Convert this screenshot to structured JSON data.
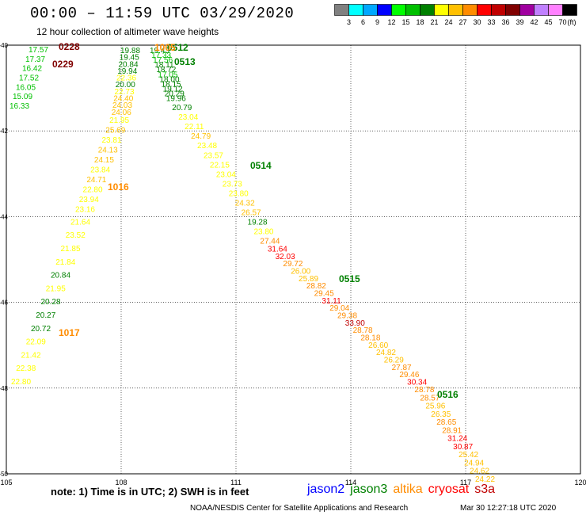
{
  "header": {
    "title": "00:00 – 11:59 UTC 03/29/2020",
    "subtitle": "12 hour collection of altimeter wave heights"
  },
  "colorbar": {
    "unit": "(ft)",
    "bins": [
      {
        "color": "#808080",
        "label": "3"
      },
      {
        "color": "#00ffff",
        "label": "6"
      },
      {
        "color": "#00a8ff",
        "label": "9"
      },
      {
        "color": "#0000ff",
        "label": "12"
      },
      {
        "color": "#00ff00",
        "label": "15"
      },
      {
        "color": "#00c000",
        "label": "18"
      },
      {
        "color": "#008000",
        "label": "21"
      },
      {
        "color": "#ffff00",
        "label": "24"
      },
      {
        "color": "#ffc000",
        "label": "27"
      },
      {
        "color": "#ff8c00",
        "label": "30"
      },
      {
        "color": "#ff0000",
        "label": "33"
      },
      {
        "color": "#c00000",
        "label": "36"
      },
      {
        "color": "#800000",
        "label": "39"
      },
      {
        "color": "#a000a0",
        "label": "42"
      },
      {
        "color": "#c080ff",
        "label": "45"
      },
      {
        "color": "#ff80ff",
        "label": "70"
      },
      {
        "color": "#000000",
        "label": ""
      }
    ]
  },
  "map": {
    "lon_range": [
      105,
      120
    ],
    "lat_range": [
      -50,
      -40
    ],
    "lon_ticks": [
      "105",
      "108",
      "111",
      "114",
      "117",
      "120"
    ],
    "lat_ticks": [
      "-40",
      "-42",
      "-44",
      "-46",
      "-48",
      "-50"
    ],
    "grid": true
  },
  "time_labels": [
    {
      "text": "0228",
      "color": "#800000"
    },
    {
      "text": "0229",
      "color": "#800000"
    },
    {
      "text": "0512",
      "color": "#008000"
    },
    {
      "text": "1005",
      "color": "#ff8c00"
    },
    {
      "text": "0513",
      "color": "#008000"
    },
    {
      "text": "0514",
      "color": "#008000"
    },
    {
      "text": "1016",
      "color": "#ff8c00"
    },
    {
      "text": "0515",
      "color": "#008000"
    },
    {
      "text": "1017",
      "color": "#ff8c00"
    },
    {
      "text": "0516",
      "color": "#008000"
    }
  ],
  "chart_data": {
    "type": "scatter",
    "title": "12 hour collection of altimeter wave heights",
    "unit": "ft",
    "tracks": [
      {
        "name": "cryosat_track_1",
        "values": [
          17.57,
          17.37,
          16.42,
          17.52,
          16.05,
          15.09,
          16.33
        ]
      },
      {
        "name": "altika_track_1",
        "values": [
          19.88,
          19.45,
          20.84,
          19.94,
          22.36,
          20.0,
          22.73,
          24.4,
          24.03,
          24.06,
          21.95,
          25.69,
          23.81,
          24.13,
          24.15,
          23.84,
          24.71,
          22.8,
          23.94,
          23.16,
          21.64,
          23.52,
          21.85,
          21.84,
          20.84,
          21.95,
          20.28,
          20.27,
          20.72,
          22.09,
          21.42,
          22.38,
          22.8
        ]
      },
      {
        "name": "jason3_track_1",
        "values": [
          19.43,
          17.33,
          17.56,
          18.11,
          18.72,
          17.05,
          18.0,
          18.15,
          19.12,
          20.29,
          19.96,
          20.79,
          23.04,
          22.11,
          24.79,
          23.48,
          23.57,
          22.15,
          23.04,
          23.73,
          23.8,
          24.32,
          26.57,
          19.28,
          23.8,
          27.44,
          31.64,
          32.03,
          29.72,
          26.0,
          25.89,
          28.82,
          29.45,
          31.11,
          29.04,
          29.38,
          33.9,
          28.78,
          28.18,
          26.6,
          24.82,
          26.29,
          27.87,
          29.46,
          30.34,
          28.78,
          28.57,
          25.96,
          26.35,
          28.65,
          28.91,
          31.24,
          30.87,
          25.42,
          24.94,
          24.62,
          24.22
        ]
      }
    ]
  },
  "footer": {
    "note": "note:  1) Time is in UTC;  2) SWH is in feet",
    "satellites": [
      {
        "name": "jason2",
        "color": "#0000ff"
      },
      {
        "name": "jason3",
        "color": "#008000"
      },
      {
        "name": "altika",
        "color": "#ff8c00"
      },
      {
        "name": "cryosat",
        "color": "#ff0000"
      },
      {
        "name": "s3a",
        "color": "#c00000"
      }
    ],
    "credit": "NOAA/NESDIS Center for Satellite Applications and Research",
    "timestamp": "Mar 30 12:27:18 UTC 2020"
  }
}
